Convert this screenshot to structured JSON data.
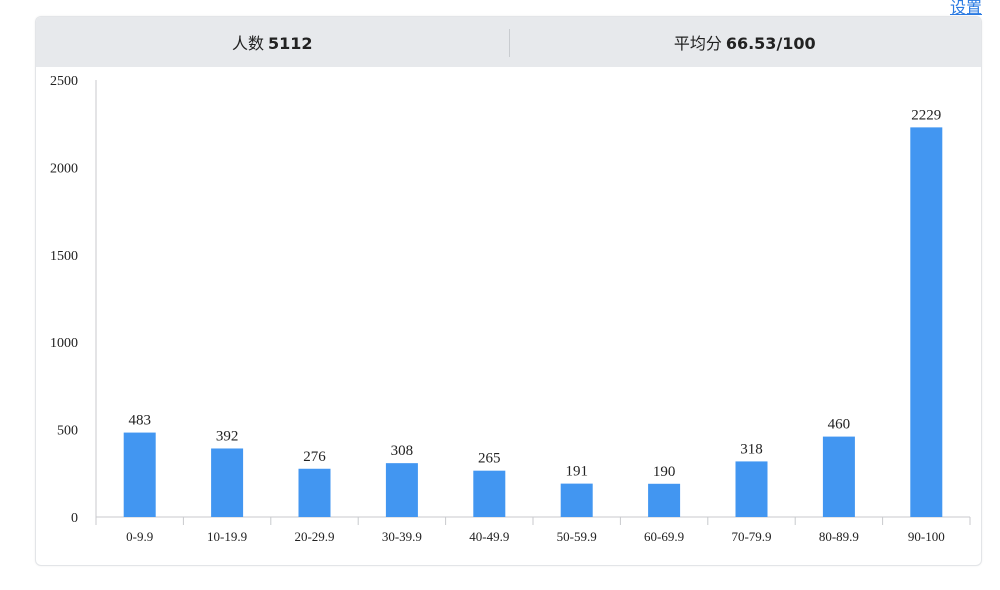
{
  "settings_label": "设置",
  "stats": {
    "count_label": "人数",
    "count_value": "5112",
    "avg_label": "平均分",
    "avg_value": "66.53/100"
  },
  "colors": {
    "bar": "#4296f1",
    "axis": "#c8cacd",
    "header_bg": "#e7e9ec",
    "link": "#2a7ae2"
  },
  "chart_data": {
    "type": "bar",
    "categories": [
      "0-9.9",
      "10-19.9",
      "20-29.9",
      "30-39.9",
      "40-49.9",
      "50-59.9",
      "60-69.9",
      "70-79.9",
      "80-89.9",
      "90-100"
    ],
    "values": [
      483,
      392,
      276,
      308,
      265,
      191,
      190,
      318,
      460,
      2229
    ],
    "ylim": [
      0,
      2500
    ],
    "yticks": [
      0,
      500,
      1000,
      1500,
      2000,
      2500
    ],
    "grid": false,
    "legend": "none",
    "data_labels": true
  }
}
